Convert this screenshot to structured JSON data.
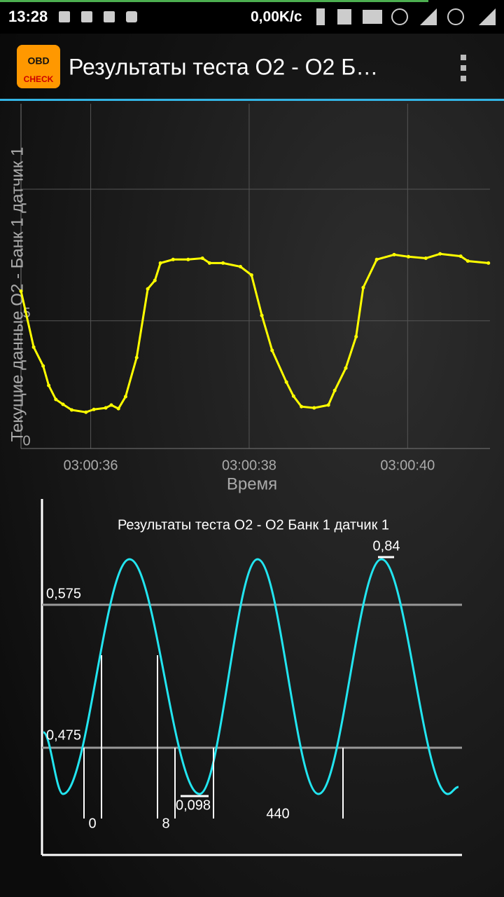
{
  "status_bar": {
    "time": "13:28",
    "speed": "0,00K/c"
  },
  "app_bar": {
    "icon_top": "OBD",
    "icon_bottom": "CHECK",
    "title": "Результаты теста O2 - O2 Б…"
  },
  "chart": {
    "type": "line",
    "y_label": "Текущие данные O2 - Банк 1 датчик 1",
    "x_label": "Время",
    "color": "#ffff00",
    "xlim": [
      35.12,
      41.04
    ],
    "xticks": [
      {
        "value": 36,
        "label": "03:00:36"
      },
      {
        "value": 38,
        "label": "03:00:38"
      },
      {
        "value": 40,
        "label": "03:00:40"
      }
    ],
    "ylim": [
      0,
      13.5
    ],
    "yticks": [
      0,
      5
    ],
    "grid": true,
    "x": [
      35.12,
      35.28,
      35.4,
      35.47,
      35.56,
      35.65,
      35.76,
      35.94,
      36.04,
      36.19,
      36.26,
      36.35,
      36.44,
      36.58,
      36.72,
      36.81,
      36.88,
      37.04,
      37.23,
      37.41,
      37.5,
      37.67,
      37.89,
      38.03,
      38.16,
      38.29,
      38.47,
      38.56,
      38.66,
      38.82,
      39.0,
      39.08,
      39.22,
      39.35,
      39.44,
      39.61,
      39.83,
      40.01,
      40.23,
      40.41,
      40.67,
      40.76,
      41.02
    ],
    "values": [
      6.16,
      3.97,
      3.23,
      2.47,
      1.92,
      1.73,
      1.51,
      1.42,
      1.53,
      1.59,
      1.7,
      1.56,
      2.03,
      3.56,
      6.25,
      6.58,
      7.26,
      7.4,
      7.4,
      7.45,
      7.26,
      7.26,
      7.12,
      6.79,
      5.21,
      3.84,
      2.6,
      2.05,
      1.64,
      1.59,
      1.7,
      2.27,
      3.15,
      4.38,
      6.3,
      7.4,
      7.59,
      7.51,
      7.45,
      7.62,
      7.53,
      7.34,
      7.26
    ]
  },
  "test_diagram": {
    "title": "Результаты теста O2 - O2 Банк 1 датчик 1",
    "upper_threshold": "0,575",
    "lower_threshold": "0,475",
    "max": "0,84",
    "min": "0,098",
    "marker_1": "0",
    "marker_2": "8",
    "marker_3": "440"
  }
}
